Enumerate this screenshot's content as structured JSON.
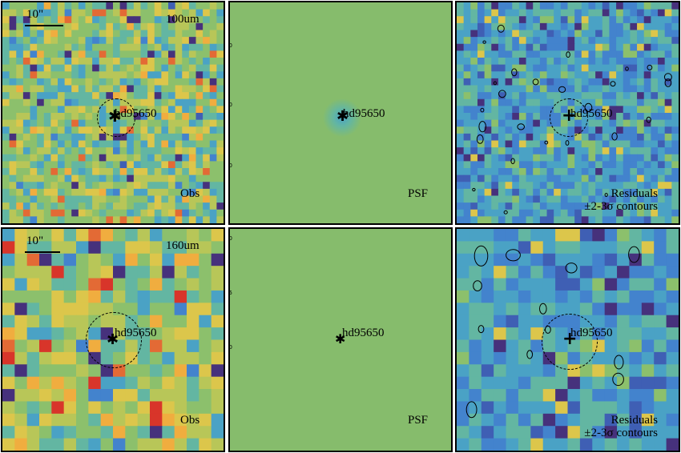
{
  "colors": {
    "psf_background": "#86bc6c",
    "psf_core": "#58a79c",
    "border": "#000000",
    "palette": [
      "#46317c",
      "#3f5fb4",
      "#4383cd",
      "#4aa2c5",
      "#63b6a2",
      "#8cc06c",
      "#b8c658",
      "#dcc64b",
      "#f0ad3f",
      "#e36a35",
      "#d8352a"
    ]
  },
  "source_name": "hd95650",
  "row_top": {
    "band": "100um",
    "scale_label": "10\"",
    "obs_label": "Obs",
    "psf_label": "PSF",
    "residuals_label": "Residuals",
    "contours_label": "±2-3σ contours",
    "axis_ticks": [
      "30",
      "20",
      "10"
    ]
  },
  "row_bottom": {
    "band": "160um",
    "scale_label": "10\"",
    "obs_label": "Obs",
    "psf_label": "PSF",
    "residuals_label": "Residuals",
    "contours_label": "±2-3σ contours",
    "axis_ticks": [
      "20",
      "15",
      "10",
      "5"
    ]
  },
  "icons": {
    "source_marker": "asterisk-icon",
    "residual_marker": "plus-icon"
  }
}
